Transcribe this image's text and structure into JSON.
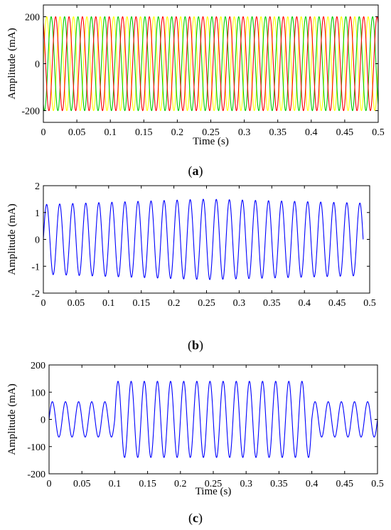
{
  "chart_data": [
    {
      "type": "line",
      "caption": "(a)",
      "caption_bold": "a",
      "xlabel": "Time (s)",
      "ylabel": "Amplitude (mA)",
      "xlim": [
        0,
        0.5
      ],
      "ylim": [
        -250,
        250
      ],
      "xticks": [
        "0",
        "0.05",
        "0.1",
        "0.15",
        "0.2",
        "0.25",
        "0.3",
        "0.35",
        "0.4",
        "0.45",
        "0.5"
      ],
      "yticks": [
        "-200",
        "0",
        "200"
      ],
      "ytick_values": [
        -200,
        0,
        200
      ],
      "grid": false,
      "series": [
        {
          "color": "#ffff00",
          "amplitude": 200,
          "frequency": 50,
          "phase_deg": 0
        },
        {
          "color": "#00cc00",
          "amplitude": 200,
          "frequency": 50,
          "phase_deg": -120
        },
        {
          "color": "#ff0000",
          "amplitude": 200,
          "frequency": 50,
          "phase_deg": 120
        }
      ]
    },
    {
      "type": "line",
      "caption": "(b)",
      "caption_bold": "b",
      "xlabel": "",
      "ylabel": "Amplitude (mA)",
      "xlim": [
        0,
        0.5
      ],
      "ylim": [
        -2,
        2
      ],
      "xticks": [
        "0",
        "0.05",
        "0.1",
        "0.15",
        "0.2",
        "0.25",
        "0.3",
        "0.35",
        "0.4",
        "0.45",
        "0.5"
      ],
      "yticks": [
        "-2",
        "-1",
        "0",
        "1",
        "2"
      ],
      "ytick_values": [
        -2,
        -1,
        0,
        1,
        2
      ],
      "grid": false,
      "series": [
        {
          "color": "#0000ff",
          "frequency": 50,
          "t_end": 0.49,
          "envelope": [
            [
              0,
              1.3
            ],
            [
              0.25,
              1.5
            ],
            [
              0.49,
              1.35
            ]
          ]
        }
      ]
    },
    {
      "type": "line",
      "caption": "(c)",
      "caption_bold": "c",
      "xlabel": "Time (s)",
      "ylabel": "Amplitude (mA)",
      "xlim": [
        0,
        0.5
      ],
      "ylim": [
        -200,
        200
      ],
      "xticks": [
        "0",
        "0.05",
        "0.1",
        "0.15",
        "0.2",
        "0.25",
        "0.3",
        "0.35",
        "0.4",
        "0.45",
        "0.5"
      ],
      "yticks": [
        "-200",
        "-100",
        "0",
        "100",
        "200"
      ],
      "ytick_values": [
        -200,
        -100,
        0,
        100,
        200
      ],
      "grid": false,
      "series": [
        {
          "color": "#0000ff",
          "frequency": 50,
          "segments": [
            {
              "t_start": 0,
              "t_end": 0.1,
              "amplitude": 65
            },
            {
              "t_start": 0.1,
              "t_end": 0.4,
              "amplitude": 140
            },
            {
              "t_start": 0.4,
              "t_end": 0.5,
              "amplitude": 65
            }
          ]
        }
      ]
    }
  ]
}
